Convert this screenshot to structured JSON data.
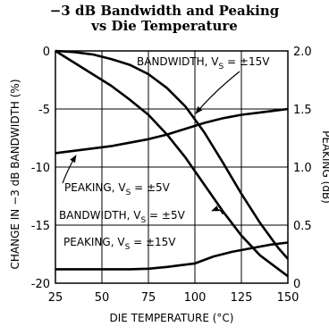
{
  "chart_data": {
    "type": "line",
    "title": [
      "−3 dB Bandwidth and Peaking",
      "vs Die Temperature"
    ],
    "xlabel": "DIE TEMPERATURE (°C)",
    "ylabel_left": "CHANGE IN −3 dB BANDWIDTH (%)",
    "ylabel_right": "PEAKING (dB)",
    "xlim": [
      25,
      150
    ],
    "ylim_left": [
      -20,
      0
    ],
    "ylim_right": [
      0,
      2.0
    ],
    "x_ticks": [
      "25",
      "50",
      "75",
      "100",
      "125",
      "150"
    ],
    "y_left_ticks": [
      "0",
      "-5",
      "-10",
      "-15",
      "-20"
    ],
    "y_right_ticks": [
      "2.0",
      "1.5",
      "1.0",
      "0.5",
      "0"
    ],
    "grid": true,
    "series": [
      {
        "axis": "left",
        "x": [
          25,
          35,
          45,
          55,
          65,
          75,
          85,
          95,
          105,
          115,
          125,
          135,
          145,
          150
        ],
        "y": [
          0,
          -0.1,
          -0.3,
          -0.7,
          -1.2,
          -2.0,
          -3.2,
          -4.8,
          -7.0,
          -9.6,
          -12.3,
          -14.8,
          -17.0,
          -17.9
        ]
      },
      {
        "axis": "left",
        "x": [
          25,
          35,
          45,
          55,
          65,
          75,
          85,
          95,
          105,
          115,
          125,
          135,
          145,
          150
        ],
        "y": [
          0,
          -1.0,
          -2.0,
          -3.0,
          -4.2,
          -5.5,
          -7.2,
          -9.2,
          -11.5,
          -13.8,
          -15.9,
          -17.6,
          -18.8,
          -19.4
        ]
      },
      {
        "axis": "right",
        "x": [
          25,
          35,
          45,
          55,
          65,
          75,
          85,
          95,
          105,
          115,
          125,
          135,
          145,
          150
        ],
        "y": [
          1.12,
          1.14,
          1.16,
          1.18,
          1.21,
          1.24,
          1.28,
          1.33,
          1.38,
          1.42,
          1.45,
          1.47,
          1.49,
          1.5
        ]
      },
      {
        "axis": "right",
        "x": [
          25,
          35,
          45,
          55,
          65,
          75,
          85,
          95,
          100,
          105,
          110,
          120,
          130,
          140,
          150
        ],
        "y": [
          0.12,
          0.12,
          0.12,
          0.12,
          0.12,
          0.125,
          0.14,
          0.16,
          0.17,
          0.2,
          0.23,
          0.27,
          0.3,
          0.33,
          0.35
        ]
      }
    ],
    "annotations": [
      {
        "main": "BANDWIDTH, V",
        "sub": "S",
        "tail": " = ±15V"
      },
      {
        "main": "PEAKING, V",
        "sub": "S",
        "tail": " = ±5V"
      },
      {
        "main": "BANDWIDTH, V",
        "sub": "S",
        "tail": " = ±5V"
      },
      {
        "main": "PEAKING, V",
        "sub": "S",
        "tail": " = ±15V"
      }
    ]
  }
}
